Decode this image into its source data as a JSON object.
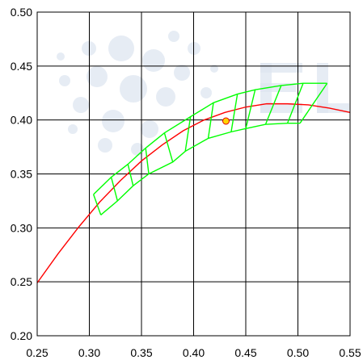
{
  "chart_data": {
    "type": "line",
    "title": "",
    "xlabel": "",
    "ylabel": "",
    "xlim": [
      0.25,
      0.55
    ],
    "ylim": [
      0.2,
      0.5
    ],
    "grid": true,
    "x_ticks": [
      "0.25",
      "0.30",
      "0.35",
      "0.40",
      "0.45",
      "0.50",
      "0.55"
    ],
    "y_ticks": [
      "0.20",
      "0.25",
      "0.30",
      "0.35",
      "0.40",
      "0.45",
      "0.50"
    ],
    "colors": {
      "curve": "#ff0000",
      "region": "#00ff00",
      "point_fill": "#ffd400",
      "point_stroke": "#e00000",
      "grid": "#000000",
      "watermark": "#dde6f0"
    },
    "series": [
      {
        "kind": "curve",
        "x": [
          0.25,
          0.27,
          0.29,
          0.31,
          0.33,
          0.35,
          0.37,
          0.39,
          0.41,
          0.43,
          0.45,
          0.47,
          0.49,
          0.51,
          0.53,
          0.55
        ],
        "y": [
          0.249,
          0.276,
          0.301,
          0.324,
          0.344,
          0.362,
          0.377,
          0.39,
          0.4,
          0.407,
          0.412,
          0.415,
          0.415,
          0.414,
          0.411,
          0.407
        ]
      },
      {
        "kind": "region",
        "upper": {
          "x": [
            0.304,
            0.321,
            0.337,
            0.354,
            0.372,
            0.397,
            0.419,
            0.442,
            0.459,
            0.484,
            0.505,
            0.528
          ],
          "y": [
            0.331,
            0.347,
            0.359,
            0.374,
            0.388,
            0.403,
            0.416,
            0.424,
            0.428,
            0.432,
            0.434,
            0.434
          ]
        },
        "lower": {
          "x": [
            0.311,
            0.327,
            0.342,
            0.357,
            0.38,
            0.392,
            0.414,
            0.436,
            0.45,
            0.469,
            0.49,
            0.502
          ],
          "y": [
            0.312,
            0.325,
            0.339,
            0.35,
            0.361,
            0.371,
            0.383,
            0.389,
            0.392,
            0.396,
            0.397,
            0.397
          ]
        }
      },
      {
        "kind": "point",
        "x": [
          0.431
        ],
        "y": [
          0.399
        ]
      }
    ]
  }
}
